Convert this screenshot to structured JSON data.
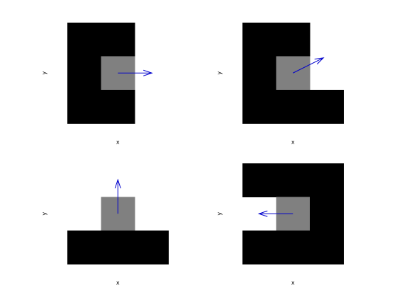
{
  "colors": {
    "background": "#ffffff",
    "wall": "#000000",
    "current_cell": "#808080",
    "arrow": "#0000cc"
  },
  "panels": [
    {
      "id": "top-left",
      "xlabel": "x",
      "ylabel": "y",
      "grid": [
        [
          1,
          1,
          0
        ],
        [
          1,
          2,
          0
        ],
        [
          1,
          1,
          0
        ]
      ],
      "arrow_direction": "right",
      "arrow_vector": [
        1,
        0
      ]
    },
    {
      "id": "top-right",
      "xlabel": "x",
      "ylabel": "y",
      "grid": [
        [
          1,
          1,
          0
        ],
        [
          1,
          2,
          0
        ],
        [
          1,
          1,
          1
        ]
      ],
      "arrow_direction": "up-right",
      "arrow_vector": [
        0.9,
        0.45
      ]
    },
    {
      "id": "bottom-left",
      "xlabel": "x",
      "ylabel": "y",
      "grid": [
        [
          0,
          0,
          0
        ],
        [
          0,
          2,
          0
        ],
        [
          1,
          1,
          1
        ]
      ],
      "arrow_direction": "up",
      "arrow_vector": [
        0,
        1
      ]
    },
    {
      "id": "bottom-right",
      "xlabel": "x",
      "ylabel": "y",
      "grid": [
        [
          1,
          1,
          1
        ],
        [
          0,
          2,
          1
        ],
        [
          1,
          1,
          1
        ]
      ],
      "arrow_direction": "left",
      "arrow_vector": [
        -1,
        0
      ]
    }
  ]
}
